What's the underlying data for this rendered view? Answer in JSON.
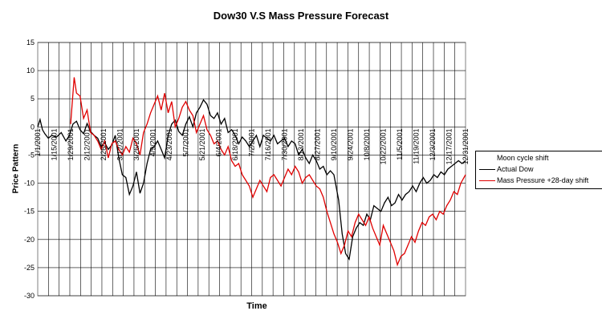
{
  "chart_data": {
    "type": "line",
    "title": "Dow30 V.S Mass Pressure Forecast",
    "xlabel": "Time",
    "ylabel": "Price Pattern",
    "ylim": [
      -30,
      15
    ],
    "yticks": [
      15,
      10,
      5,
      0,
      -5,
      -10,
      -15,
      -20,
      -25,
      -30
    ],
    "grid": true,
    "legend_position": "right",
    "xlim": [
      "2001-01-01",
      "2001-12-31"
    ],
    "xtick_labels": [
      "1/1/2001",
      "1/15/2001",
      "1/29/2001",
      "2/12/2001",
      "2/26/2001",
      "3/12/2001",
      "3/26/2001",
      "4/9/2001",
      "4/23/2001",
      "5/7/2001",
      "5/21/2001",
      "6/4/2001",
      "6/18/2001",
      "7/2/2001",
      "7/16/2001",
      "7/30/2001",
      "8/13/2001",
      "8/27/2001",
      "9/10/2001",
      "9/24/2001",
      "10/8/2001",
      "10/22/2001",
      "11/5/2001",
      "11/19/2001",
      "12/3/2001",
      "12/17/2001",
      "12/31/2001"
    ],
    "series": [
      {
        "name": "Moon cycle shift",
        "color": "#000000",
        "x": [],
        "y": []
      },
      {
        "name": "Actual Dow",
        "color": "#000000",
        "x": [
          "2001-01-01",
          "2001-01-03",
          "2001-01-05",
          "2001-01-07",
          "2001-01-10",
          "2001-01-13",
          "2001-01-17",
          "2001-01-21",
          "2001-01-25",
          "2001-01-28",
          "2001-01-31",
          "2001-02-03",
          "2001-02-06",
          "2001-02-09",
          "2001-02-12",
          "2001-02-15",
          "2001-02-18",
          "2001-02-21",
          "2001-02-24",
          "2001-02-27",
          "2001-03-02",
          "2001-03-05",
          "2001-03-08",
          "2001-03-11",
          "2001-03-14",
          "2001-03-17",
          "2001-03-20",
          "2001-03-23",
          "2001-03-26",
          "2001-03-29",
          "2001-04-01",
          "2001-04-04",
          "2001-04-07",
          "2001-04-10",
          "2001-04-13",
          "2001-04-16",
          "2001-04-19",
          "2001-04-22",
          "2001-04-25",
          "2001-04-28",
          "2001-05-01",
          "2001-05-04",
          "2001-05-07",
          "2001-05-10",
          "2001-05-13",
          "2001-05-16",
          "2001-05-19",
          "2001-05-22",
          "2001-05-25",
          "2001-05-28",
          "2001-05-31",
          "2001-06-03",
          "2001-06-06",
          "2001-06-09",
          "2001-06-12",
          "2001-06-15",
          "2001-06-18",
          "2001-06-21",
          "2001-06-24",
          "2001-06-27",
          "2001-06-30",
          "2001-07-03",
          "2001-07-06",
          "2001-07-09",
          "2001-07-12",
          "2001-07-15",
          "2001-07-18",
          "2001-07-21",
          "2001-07-24",
          "2001-07-27",
          "2001-07-30",
          "2001-08-02",
          "2001-08-05",
          "2001-08-08",
          "2001-08-11",
          "2001-08-14",
          "2001-08-17",
          "2001-08-20",
          "2001-08-23",
          "2001-08-26",
          "2001-08-29",
          "2001-09-01",
          "2001-09-04",
          "2001-09-07",
          "2001-09-10",
          "2001-09-14",
          "2001-09-17",
          "2001-09-20",
          "2001-09-23",
          "2001-09-26",
          "2001-09-29",
          "2001-10-02",
          "2001-10-05",
          "2001-10-08",
          "2001-10-11",
          "2001-10-14",
          "2001-10-17",
          "2001-10-20",
          "2001-10-23",
          "2001-10-26",
          "2001-10-29",
          "2001-11-01",
          "2001-11-04",
          "2001-11-07",
          "2001-11-10",
          "2001-11-13",
          "2001-11-16",
          "2001-11-19",
          "2001-11-22",
          "2001-11-25",
          "2001-11-28",
          "2001-12-01",
          "2001-12-04",
          "2001-12-07",
          "2001-12-10",
          "2001-12-13",
          "2001-12-16",
          "2001-12-19",
          "2001-12-22",
          "2001-12-25",
          "2001-12-28",
          "2001-12-31"
        ],
        "y": [
          0,
          1.3,
          -0.5,
          -1.2,
          -2.0,
          -1.5,
          -1.8,
          -1.0,
          -2.5,
          -1.5,
          0.5,
          1.0,
          -0.5,
          -1.2,
          0.6,
          -0.8,
          -1.5,
          -2.0,
          -3.5,
          -2.8,
          -4.0,
          -3.2,
          -1.5,
          -5.5,
          -8.5,
          -9.0,
          -12.0,
          -10.5,
          -8.0,
          -11.8,
          -10.0,
          -6.5,
          -4.0,
          -3.5,
          -2.5,
          -4.0,
          -5.5,
          -1.5,
          0.5,
          1.2,
          -0.8,
          -1.5,
          0.5,
          1.8,
          0.0,
          2.5,
          3.5,
          4.8,
          4.0,
          2.0,
          1.5,
          2.5,
          0.5,
          1.5,
          -1.0,
          -0.5,
          -1.5,
          -3.0,
          -1.8,
          -2.5,
          -3.5,
          -2.5,
          -1.5,
          -3.5,
          -1.5,
          -2.0,
          -2.5,
          -1.5,
          -3.0,
          -2.5,
          -2.0,
          -3.5,
          -2.5,
          -3.0,
          -5.0,
          -4.0,
          -5.5,
          -6.5,
          -5.0,
          -6.0,
          -7.5,
          -7.0,
          -8.5,
          -7.8,
          -8.5,
          -13.0,
          -19.0,
          -22.5,
          -23.5,
          -19.5,
          -18.0,
          -17.0,
          -17.5,
          -15.5,
          -16.5,
          -14.0,
          -14.5,
          -15.0,
          -13.5,
          -12.5,
          -14.0,
          -13.5,
          -12.0,
          -13.0,
          -12.0,
          -11.5,
          -10.5,
          -11.5,
          -10.0,
          -9.0,
          -10.0,
          -9.5,
          -8.5,
          -9.0,
          -8.0,
          -8.5,
          -7.5,
          -7.0,
          -6.5,
          -6.0,
          -6.5,
          -6.0
        ]
      },
      {
        "name": "Mass Pressure +28-day shift",
        "color": "#e00000",
        "x": [
          "2001-01-29",
          "2001-02-01",
          "2001-02-03",
          "2001-02-06",
          "2001-02-09",
          "2001-02-12",
          "2001-02-15",
          "2001-02-18",
          "2001-02-21",
          "2001-02-24",
          "2001-02-27",
          "2001-03-02",
          "2001-03-05",
          "2001-03-08",
          "2001-03-11",
          "2001-03-14",
          "2001-03-17",
          "2001-03-20",
          "2001-03-23",
          "2001-03-26",
          "2001-03-29",
          "2001-04-01",
          "2001-04-04",
          "2001-04-07",
          "2001-04-10",
          "2001-04-13",
          "2001-04-16",
          "2001-04-19",
          "2001-04-22",
          "2001-04-25",
          "2001-04-28",
          "2001-05-01",
          "2001-05-04",
          "2001-05-07",
          "2001-05-10",
          "2001-05-13",
          "2001-05-16",
          "2001-05-19",
          "2001-05-22",
          "2001-05-25",
          "2001-05-28",
          "2001-05-31",
          "2001-06-03",
          "2001-06-06",
          "2001-06-09",
          "2001-06-12",
          "2001-06-15",
          "2001-06-18",
          "2001-06-21",
          "2001-06-24",
          "2001-06-27",
          "2001-06-30",
          "2001-07-03",
          "2001-07-06",
          "2001-07-09",
          "2001-07-12",
          "2001-07-15",
          "2001-07-18",
          "2001-07-21",
          "2001-07-24",
          "2001-07-27",
          "2001-07-30",
          "2001-08-02",
          "2001-08-05",
          "2001-08-08",
          "2001-08-11",
          "2001-08-14",
          "2001-08-17",
          "2001-08-20",
          "2001-08-23",
          "2001-08-26",
          "2001-08-29",
          "2001-09-01",
          "2001-09-04",
          "2001-09-07",
          "2001-09-10",
          "2001-09-13",
          "2001-09-16",
          "2001-09-19",
          "2001-09-22",
          "2001-09-25",
          "2001-09-28",
          "2001-10-01",
          "2001-10-04",
          "2001-10-07",
          "2001-10-10",
          "2001-10-13",
          "2001-10-16",
          "2001-10-19",
          "2001-10-22",
          "2001-10-25",
          "2001-10-28",
          "2001-10-31",
          "2001-11-03",
          "2001-11-06",
          "2001-11-09",
          "2001-11-12",
          "2001-11-15",
          "2001-11-18",
          "2001-11-21",
          "2001-11-24",
          "2001-11-27",
          "2001-11-30",
          "2001-12-03",
          "2001-12-06",
          "2001-12-09",
          "2001-12-12",
          "2001-12-15",
          "2001-12-18",
          "2001-12-21",
          "2001-12-24",
          "2001-12-27",
          "2001-12-31"
        ],
        "y": [
          0.5,
          8.8,
          6.0,
          5.5,
          1.5,
          3.0,
          -1.0,
          -1.5,
          -2.5,
          -4.0,
          -2.5,
          -5.5,
          -3.0,
          -2.5,
          -4.0,
          -5.0,
          -3.5,
          -4.5,
          -2.0,
          -3.0,
          -5.0,
          -1.0,
          0.5,
          2.5,
          4.0,
          5.5,
          3.0,
          6.0,
          2.5,
          4.5,
          0.0,
          1.5,
          3.5,
          4.5,
          3.0,
          2.0,
          -1.0,
          0.5,
          2.0,
          -0.5,
          -1.5,
          -3.0,
          -2.5,
          -4.0,
          -5.0,
          -3.5,
          -6.0,
          -7.0,
          -6.5,
          -8.5,
          -9.5,
          -10.5,
          -12.5,
          -11.0,
          -9.5,
          -10.5,
          -11.5,
          -9.0,
          -8.5,
          -9.5,
          -10.5,
          -9.0,
          -7.5,
          -8.5,
          -7.0,
          -8.0,
          -10.0,
          -9.0,
          -8.5,
          -9.5,
          -10.5,
          -11.0,
          -12.5,
          -15.0,
          -17.0,
          -19.0,
          -20.5,
          -22.5,
          -21.0,
          -18.5,
          -19.5,
          -17.0,
          -15.5,
          -16.5,
          -17.5,
          -16.0,
          -18.0,
          -19.5,
          -21.0,
          -17.5,
          -19.0,
          -20.5,
          -22.0,
          -24.5,
          -23.0,
          -22.5,
          -21.0,
          -19.5,
          -20.5,
          -18.5,
          -17.0,
          -17.5,
          -16.0,
          -15.5,
          -16.5,
          -15.0,
          -15.5,
          -14.0,
          -13.0,
          -11.5,
          -12.0,
          -10.0,
          -8.5
        ]
      }
    ]
  }
}
